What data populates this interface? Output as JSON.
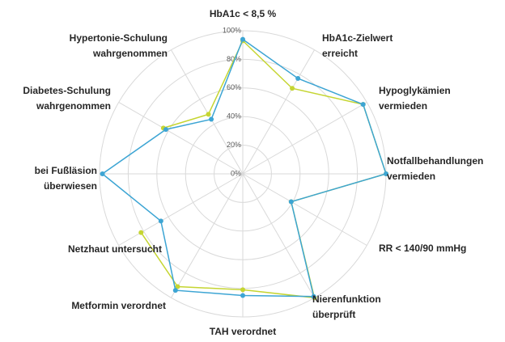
{
  "chart_data": {
    "type": "radar",
    "categories": [
      "HbA1c < 8,5 %",
      "HbA1c-Zielwert\nerreicht",
      "Hypoglykämien\nvermieden",
      "Notfallbehandlungen\nvermieden",
      "RR < 140/90 mmHg",
      "Nierenfunktion\nüberprüft",
      "TAH verordnet",
      "Metformin verordnet",
      "Netzhaut untersucht",
      "bei Fußläsion\nüberwiesen",
      "Diabetes-Schulung\nwahrgenommen",
      "Hypertonie-Schulung\nwahrgenommen"
    ],
    "series": [
      {
        "color": "#c5d531",
        "values": [
          93,
          69,
          97,
          100,
          39,
          100,
          81,
          91,
          82,
          null,
          64,
          48
        ]
      },
      {
        "color": "#3da5d4",
        "values": [
          94,
          77,
          97,
          100,
          39,
          99,
          85,
          94,
          66,
          98,
          62,
          44
        ]
      }
    ],
    "ylim": [
      0,
      100
    ],
    "yticks": [
      {
        "value": 0,
        "label": "0%"
      },
      {
        "value": 20,
        "label": "20%"
      },
      {
        "value": 40,
        "label": "40%"
      },
      {
        "value": 60,
        "label": "60%"
      },
      {
        "value": 80,
        "label": "80%"
      },
      {
        "value": 100,
        "label": "100%"
      }
    ],
    "grid": true
  }
}
